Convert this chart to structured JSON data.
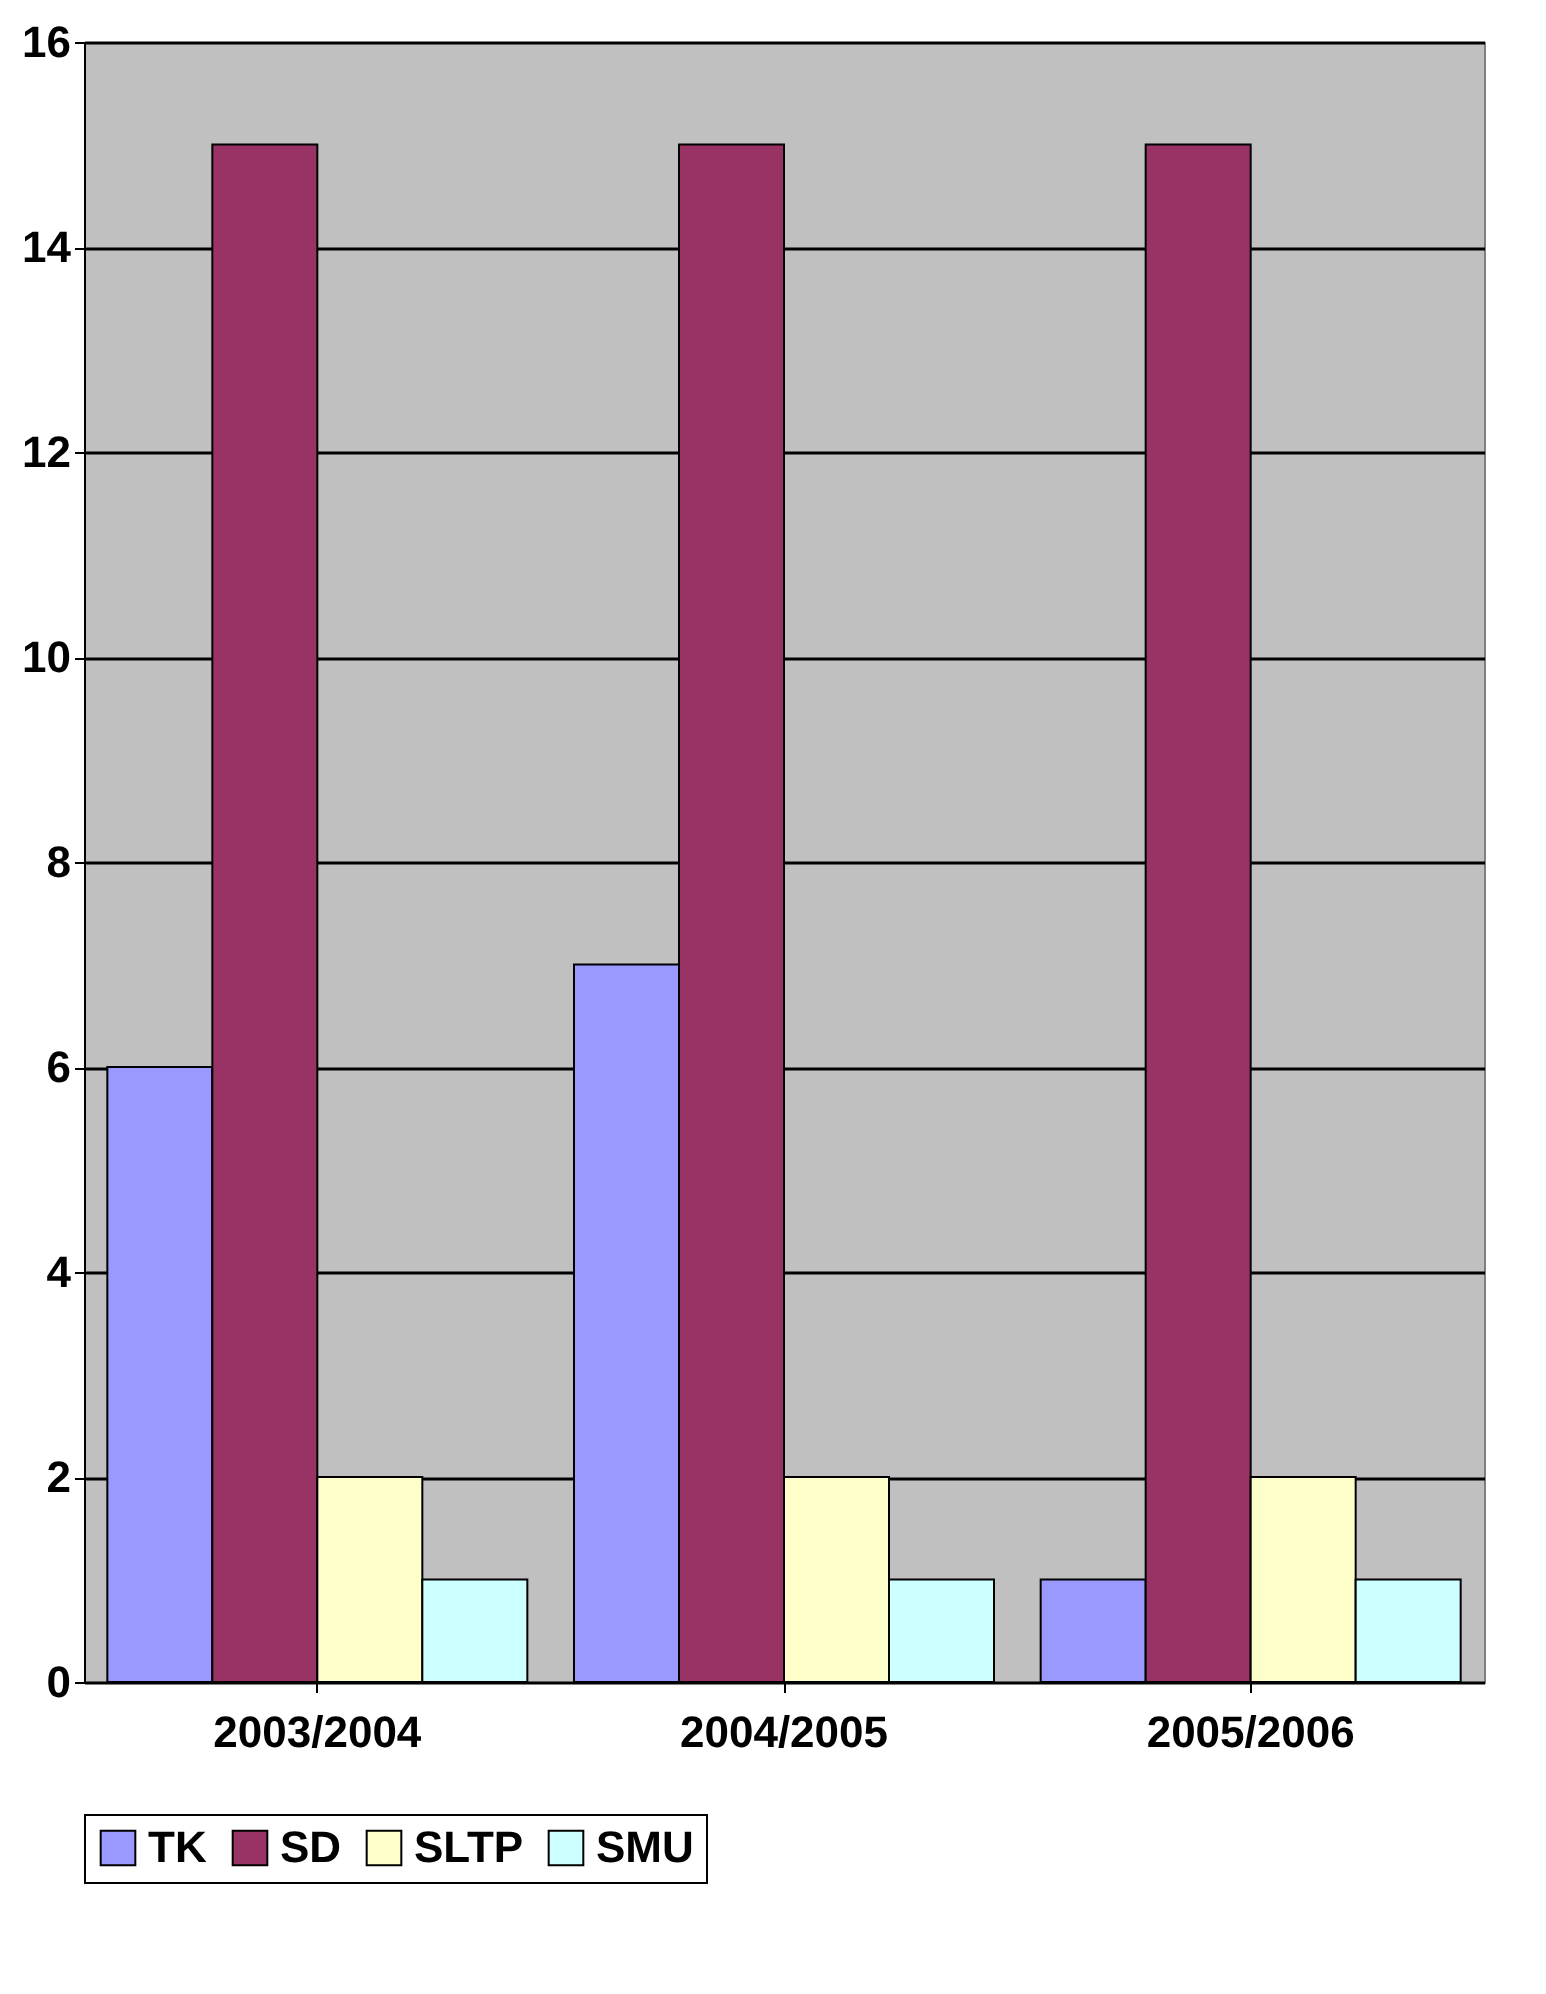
{
  "chart_data": {
    "type": "bar",
    "categories": [
      "2003/2004",
      "2004/2005",
      "2005/2006"
    ],
    "series": [
      {
        "name": "TK",
        "color": "#9999ff",
        "values": [
          6,
          7,
          1
        ]
      },
      {
        "name": "SD",
        "color": "#993366",
        "values": [
          15,
          15,
          15
        ]
      },
      {
        "name": "SLTP",
        "color": "#ffffcc",
        "values": [
          2,
          2,
          2
        ]
      },
      {
        "name": "SMU",
        "color": "#ccffff",
        "values": [
          1,
          1,
          1
        ]
      }
    ],
    "ylim": [
      0,
      16
    ],
    "yticks": [
      0,
      2,
      4,
      6,
      8,
      10,
      12,
      14,
      16
    ],
    "grid": "y",
    "legend": "bottom"
  }
}
